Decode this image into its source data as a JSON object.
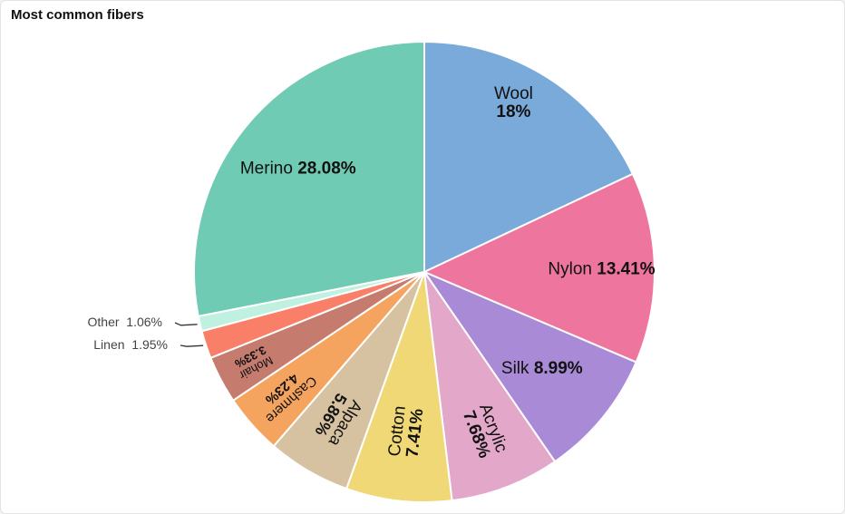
{
  "card": {
    "title": "Most common fibers"
  },
  "chart_data": {
    "type": "pie",
    "title": "Most common fibers",
    "colors": [
      "#7aaad9",
      "#ee769e",
      "#a98ad6",
      "#e3a8c9",
      "#f0d876",
      "#d6c2a0",
      "#f5a460",
      "#c67b6f",
      "#fa7f68",
      "#bff0e0",
      "#6fcbb3"
    ],
    "slices": [
      {
        "label": "Wool",
        "value": 18,
        "value_text": "18%"
      },
      {
        "label": "Nylon",
        "value": 13.41,
        "value_text": "13.41%"
      },
      {
        "label": "Silk",
        "value": 8.99,
        "value_text": "8.99%"
      },
      {
        "label": "Acrylic",
        "value": 7.68,
        "value_text": "7.68%"
      },
      {
        "label": "Cotton",
        "value": 7.41,
        "value_text": "7.41%"
      },
      {
        "label": "Alpaca",
        "value": 5.86,
        "value_text": "5.86%"
      },
      {
        "label": "Cashmere",
        "value": 4.23,
        "value_text": "4.23%"
      },
      {
        "label": "Mohair",
        "value": 3.33,
        "value_text": "3.33%"
      },
      {
        "label": "Linen",
        "value": 1.95,
        "value_text": "1.95%"
      },
      {
        "label": "Other",
        "value": 1.06,
        "value_text": "1.06%"
      },
      {
        "label": "Merino",
        "value": 28.08,
        "value_text": "28.08%"
      }
    ]
  }
}
